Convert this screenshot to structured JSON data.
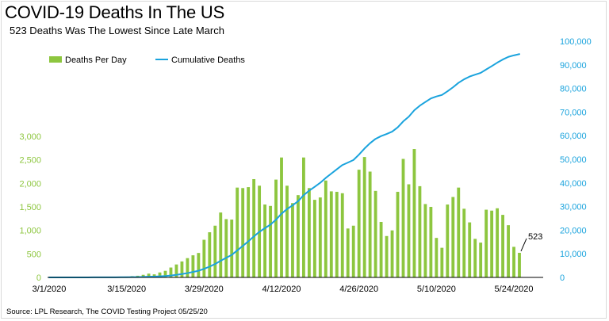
{
  "header": {
    "title": "COVID-19 Deaths In The US",
    "subtitle": "523 Deaths Was The Lowest Since Late March"
  },
  "footer": {
    "source": "Source: LPL Research, The COVID Testing Project 05/25/20"
  },
  "colors": {
    "bars": "#8dc63f",
    "line": "#1aa3dd",
    "left_axis_text": "#8dc63f",
    "right_axis_text": "#1aa3dd",
    "axis": "#000000"
  },
  "chart_data": {
    "type": "bar",
    "title": "COVID-19 Deaths In The US",
    "subtitle": "523 Deaths Was The Lowest Since Late March",
    "xlabel": "",
    "ylabel": "",
    "x": [
      "3/1",
      "3/2",
      "3/3",
      "3/4",
      "3/5",
      "3/6",
      "3/7",
      "3/8",
      "3/9",
      "3/10",
      "3/11",
      "3/12",
      "3/13",
      "3/14",
      "3/15",
      "3/16",
      "3/17",
      "3/18",
      "3/19",
      "3/20",
      "3/21",
      "3/22",
      "3/23",
      "3/24",
      "3/25",
      "3/26",
      "3/27",
      "3/28",
      "3/29",
      "3/30",
      "3/31",
      "4/1",
      "4/2",
      "4/3",
      "4/4",
      "4/5",
      "4/6",
      "4/7",
      "4/8",
      "4/9",
      "4/10",
      "4/11",
      "4/12",
      "4/13",
      "4/14",
      "4/15",
      "4/16",
      "4/17",
      "4/18",
      "4/19",
      "4/20",
      "4/21",
      "4/22",
      "4/23",
      "4/24",
      "4/25",
      "4/26",
      "4/27",
      "4/28",
      "4/29",
      "4/30",
      "5/1",
      "5/2",
      "5/3",
      "5/4",
      "5/5",
      "5/6",
      "5/7",
      "5/8",
      "5/9",
      "5/10",
      "5/11",
      "5/12",
      "5/13",
      "5/14",
      "5/15",
      "5/16",
      "5/17",
      "5/18",
      "5/19",
      "5/20",
      "5/21",
      "5/22",
      "5/23",
      "5/24",
      "5/25"
    ],
    "x_tick_labels": [
      "3/1/2020",
      "3/15/2020",
      "3/29/2020",
      "4/12/2020",
      "4/26/2020",
      "5/10/2020",
      "5/24/2020"
    ],
    "y_left_ticks": [
      "0",
      "500",
      "1,000",
      "1,500",
      "2,000",
      "2,500",
      "3,000"
    ],
    "y_right_ticks": [
      "0",
      "10,000",
      "20,000",
      "30,000",
      "40,000",
      "50,000",
      "60,000",
      "70,000",
      "80,000",
      "90,000",
      "100,000"
    ],
    "y_left_lim": [
      0,
      3000
    ],
    "y_right_lim": [
      0,
      100000
    ],
    "grid": false,
    "legend_position": "top-left",
    "series": [
      {
        "name": "Deaths Per Day",
        "type": "bar",
        "axis": "left",
        "values": [
          0,
          1,
          1,
          2,
          2,
          3,
          4,
          5,
          4,
          6,
          8,
          7,
          10,
          12,
          18,
          27,
          35,
          55,
          80,
          65,
          105,
          140,
          210,
          275,
          340,
          410,
          470,
          520,
          800,
          960,
          1100,
          1380,
          1240,
          1230,
          1910,
          1900,
          1920,
          2090,
          1950,
          1550,
          1520,
          2080,
          2550,
          1950,
          1580,
          1750,
          2550,
          1900,
          1650,
          1700,
          2060,
          1830,
          1820,
          1790,
          1040,
          1100,
          2290,
          2560,
          2250,
          1840,
          1180,
          880,
          1000,
          1820,
          2520,
          1980,
          2730,
          1940,
          1560,
          1500,
          840,
          630,
          1550,
          1710,
          1910,
          1460,
          1170,
          820,
          740,
          1440,
          1420,
          1470,
          1330,
          1110,
          650,
          523
        ]
      },
      {
        "name": "Cumulative Deaths",
        "type": "line",
        "axis": "right",
        "values": [
          0,
          1,
          2,
          4,
          6,
          9,
          13,
          17,
          22,
          28,
          36,
          43,
          53,
          65,
          83,
          110,
          145,
          200,
          280,
          345,
          450,
          590,
          800,
          1075,
          1415,
          1825,
          2295,
          2815,
          3615,
          4575,
          5675,
          7055,
          8295,
          9525,
          11435,
          13335,
          15255,
          17345,
          19295,
          20845,
          22365,
          24445,
          26995,
          28945,
          30525,
          32275,
          34825,
          36725,
          38375,
          40075,
          42135,
          43965,
          45785,
          47575,
          48615,
          49715,
          52005,
          54565,
          56815,
          58655,
          59835,
          60715,
          61715,
          63535,
          66055,
          68035,
          70765,
          72705,
          74265,
          75765,
          76605,
          77235,
          78785,
          80495,
          82405,
          83865,
          85035,
          85855,
          86595,
          88035,
          89455,
          90925,
          92255,
          93365,
          94015,
          94538
        ]
      }
    ],
    "annotations": [
      {
        "text": "523",
        "x": "5/25"
      }
    ]
  }
}
